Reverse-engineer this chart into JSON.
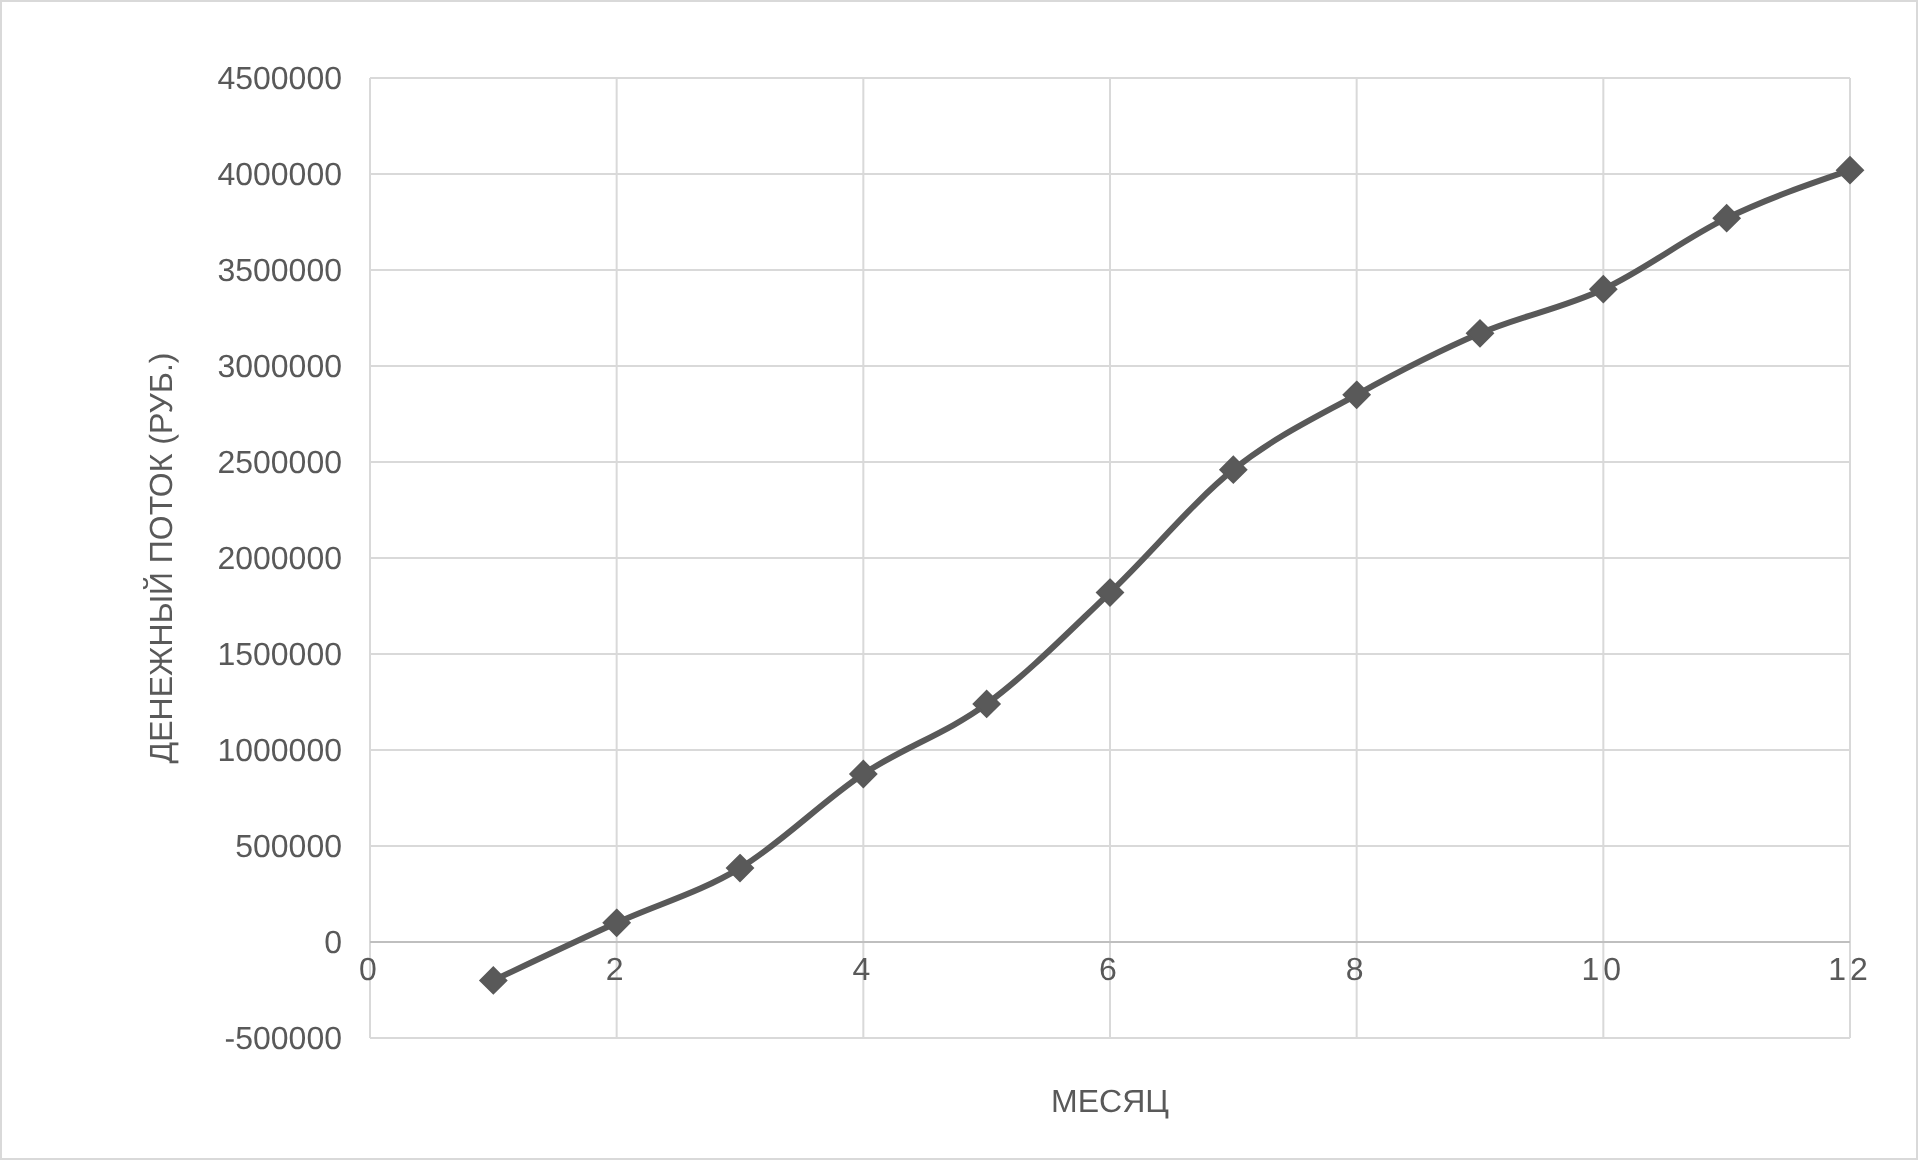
{
  "chart_data": {
    "type": "line",
    "xlabel": "МЕСЯЦ",
    "ylabel": "ДЕНЕЖНЫЙ ПОТОК (РУБ.)",
    "x": [
      1,
      2,
      3,
      4,
      5,
      6,
      7,
      8,
      9,
      10,
      11,
      12
    ],
    "series": [
      {
        "color": "#595959",
        "values": [
          -200000,
          100000,
          385000,
          875000,
          1240000,
          1820000,
          2460000,
          2850000,
          3170000,
          3400000,
          3770000,
          4020000
        ]
      }
    ],
    "xlim": [
      0,
      12
    ],
    "xticks": [
      0,
      2,
      4,
      6,
      8,
      10,
      12
    ],
    "ylim": [
      -500000,
      4500000
    ],
    "yticks": [
      -500000,
      0,
      500000,
      1000000,
      1500000,
      2000000,
      2500000,
      3000000,
      3500000,
      4000000,
      4500000
    ],
    "grid": true,
    "marker": "diamond",
    "line_style": "solid"
  }
}
